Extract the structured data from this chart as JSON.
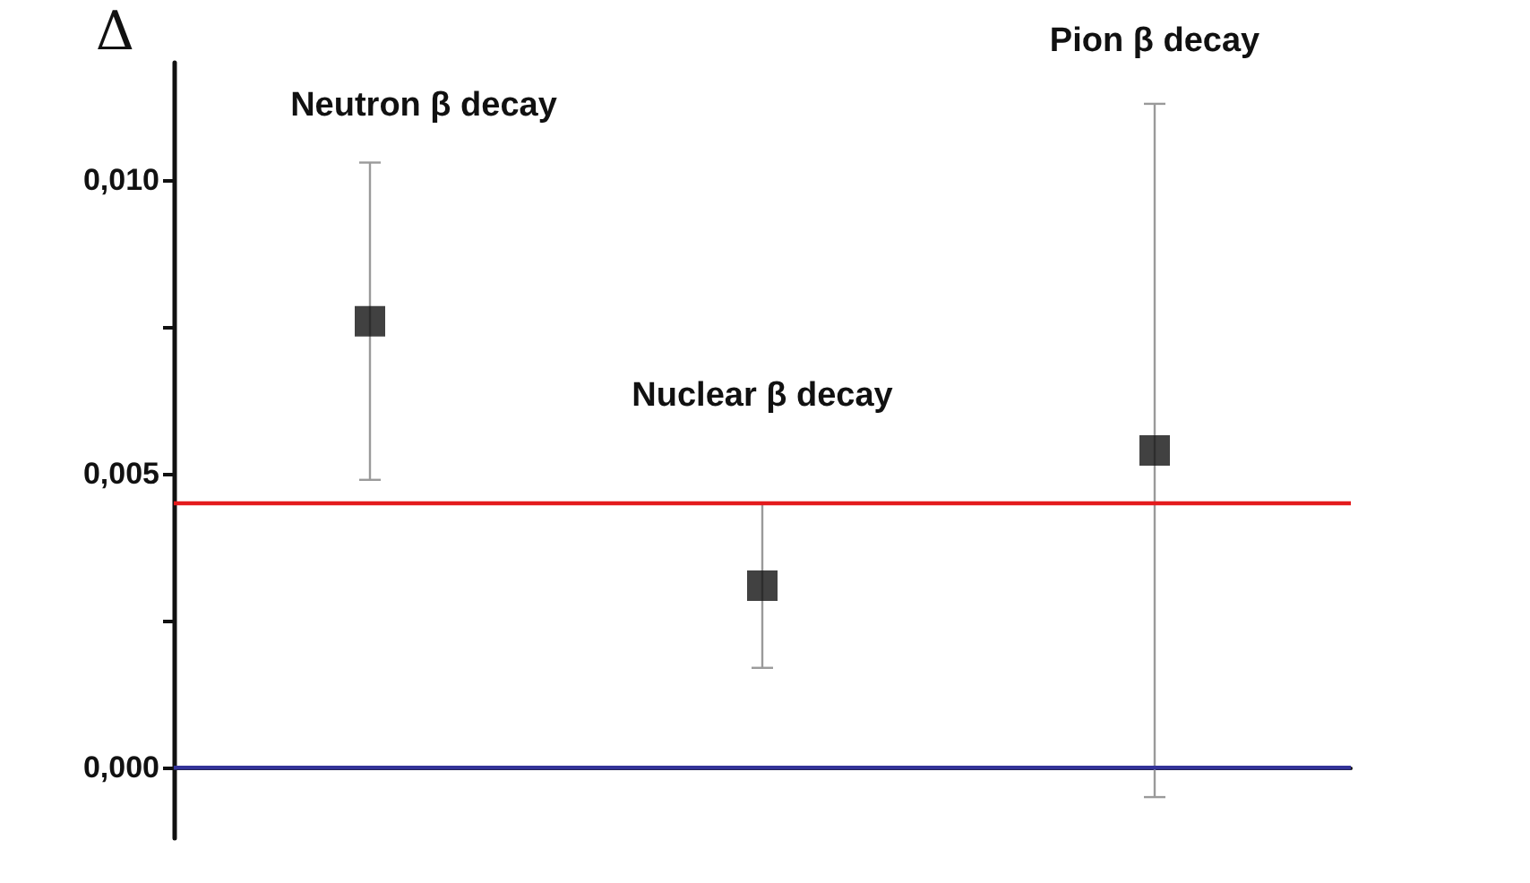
{
  "chart_data": {
    "type": "scatter",
    "ylabel": "Δ",
    "categories": [
      null,
      null,
      null
    ],
    "series": [
      {
        "color": "#111111",
        "values": [
          0.0076,
          0.0031,
          0.0054
        ],
        "errors": [
          [
            0.0049,
            0.0103
          ],
          [
            0.0017,
            0.0045
          ],
          [
            -0.0005,
            0.0113
          ]
        ]
      }
    ],
    "ylim": [
      -0.0012,
      0.012
    ],
    "yticks": [
      {
        "value": 0,
        "label": "0,000"
      },
      {
        "value": 0.0025,
        "label": null
      },
      {
        "value": 0.005,
        "label": "0,005"
      },
      {
        "value": 0.0075,
        "label": null
      },
      {
        "value": 0.01,
        "label": "0,010"
      }
    ],
    "ref_lines": [
      {
        "axis": "y",
        "value": 0.0045,
        "color": "#e31a1c"
      },
      {
        "axis": "y",
        "value": 0,
        "color": "#333399"
      }
    ],
    "annotations": [
      "Neutron β decay",
      "Nuclear β decay",
      "Pion β decay"
    ],
    "marker": "square",
    "grid": false,
    "tick_labels": "y"
  }
}
